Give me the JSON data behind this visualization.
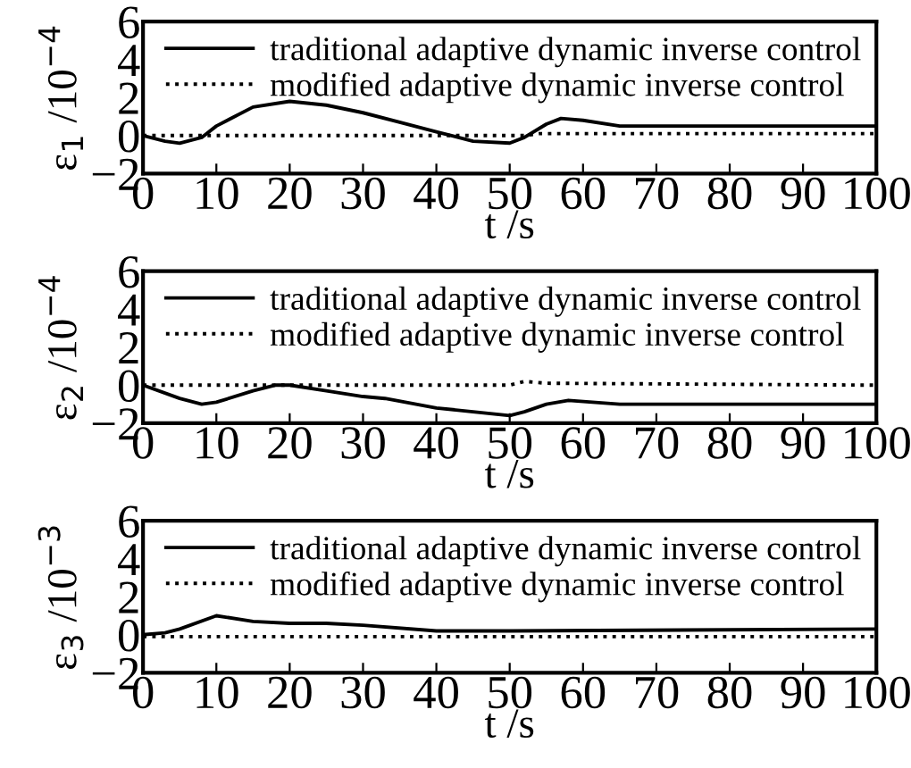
{
  "chart_data": [
    {
      "type": "line",
      "xlabel": "t /s",
      "ylabel": "ε$_{1}$ /10$^{−4}$",
      "xlim": [
        0,
        100
      ],
      "xticks": [
        0,
        10,
        20,
        30,
        40,
        50,
        60,
        70,
        80,
        90,
        100
      ],
      "ylim": [
        -2,
        6
      ],
      "yticks": [
        -2,
        0,
        2,
        4,
        6
      ],
      "grid": false,
      "legend": "top right",
      "series": [
        {
          "name": "traditional adaptive dynamic inverse control",
          "color": "#000000",
          "line_style": "solid",
          "x": [
            0,
            3,
            5,
            8,
            10,
            15,
            20,
            25,
            30,
            35,
            40,
            45,
            50,
            52,
            55,
            57,
            60,
            65,
            70,
            80,
            90,
            100
          ],
          "values": [
            0,
            -0.3,
            -0.4,
            -0.1,
            0.5,
            1.5,
            1.8,
            1.6,
            1.2,
            0.7,
            0.2,
            -0.3,
            -0.4,
            -0.1,
            0.6,
            0.9,
            0.8,
            0.5,
            0.5,
            0.5,
            0.5,
            0.5
          ]
        },
        {
          "name": "modified adaptive dynamic inverse control",
          "color": "#000000",
          "line_style": "dotted",
          "x": [
            0,
            52,
            54,
            100
          ],
          "values": [
            0,
            0,
            0.1,
            0.1
          ]
        }
      ]
    },
    {
      "type": "line",
      "xlabel": "t /s",
      "ylabel": "ε$_{2}$ /10$^{−4}$",
      "xlim": [
        0,
        100
      ],
      "xticks": [
        0,
        10,
        20,
        30,
        40,
        50,
        60,
        70,
        80,
        90,
        100
      ],
      "ylim": [
        -2,
        6
      ],
      "yticks": [
        -2,
        0,
        2,
        4,
        6
      ],
      "grid": false,
      "legend": "top right",
      "series": [
        {
          "name": "traditional adaptive dynamic inverse control",
          "color": "#000000",
          "line_style": "solid",
          "x": [
            0,
            5,
            8,
            10,
            15,
            18,
            20,
            25,
            30,
            33,
            40,
            45,
            50,
            52,
            55,
            58,
            65,
            100
          ],
          "values": [
            0,
            -0.7,
            -1.0,
            -0.9,
            -0.3,
            0,
            0,
            -0.3,
            -0.6,
            -0.7,
            -1.2,
            -1.4,
            -1.6,
            -1.4,
            -1.0,
            -0.8,
            -1.0,
            -1.0
          ]
        },
        {
          "name": "modified adaptive dynamic inverse control",
          "color": "#000000",
          "line_style": "dotted",
          "x": [
            0,
            50,
            52,
            55,
            100
          ],
          "values": [
            0,
            0,
            0.2,
            0.1,
            0
          ]
        }
      ]
    },
    {
      "type": "line",
      "xlabel": "t /s",
      "ylabel": "ε$_{3}$ /10$^{−3}$",
      "xlim": [
        0,
        100
      ],
      "xticks": [
        0,
        10,
        20,
        30,
        40,
        50,
        60,
        70,
        80,
        90,
        100
      ],
      "ylim": [
        -2,
        6
      ],
      "yticks": [
        -2,
        0,
        2,
        4,
        6
      ],
      "grid": false,
      "legend": "top right",
      "series": [
        {
          "name": "traditional adaptive dynamic inverse control",
          "color": "#000000",
          "line_style": "solid",
          "x": [
            0,
            3,
            5,
            10,
            15,
            20,
            25,
            30,
            40,
            50,
            100
          ],
          "values": [
            0,
            0.1,
            0.3,
            1.0,
            0.7,
            0.6,
            0.6,
            0.5,
            0.2,
            0.2,
            0.3
          ]
        },
        {
          "name": "modified adaptive dynamic inverse control",
          "color": "#000000",
          "line_style": "dotted",
          "x": [
            0,
            100
          ],
          "values": [
            -0.1,
            -0.1
          ]
        }
      ]
    }
  ]
}
